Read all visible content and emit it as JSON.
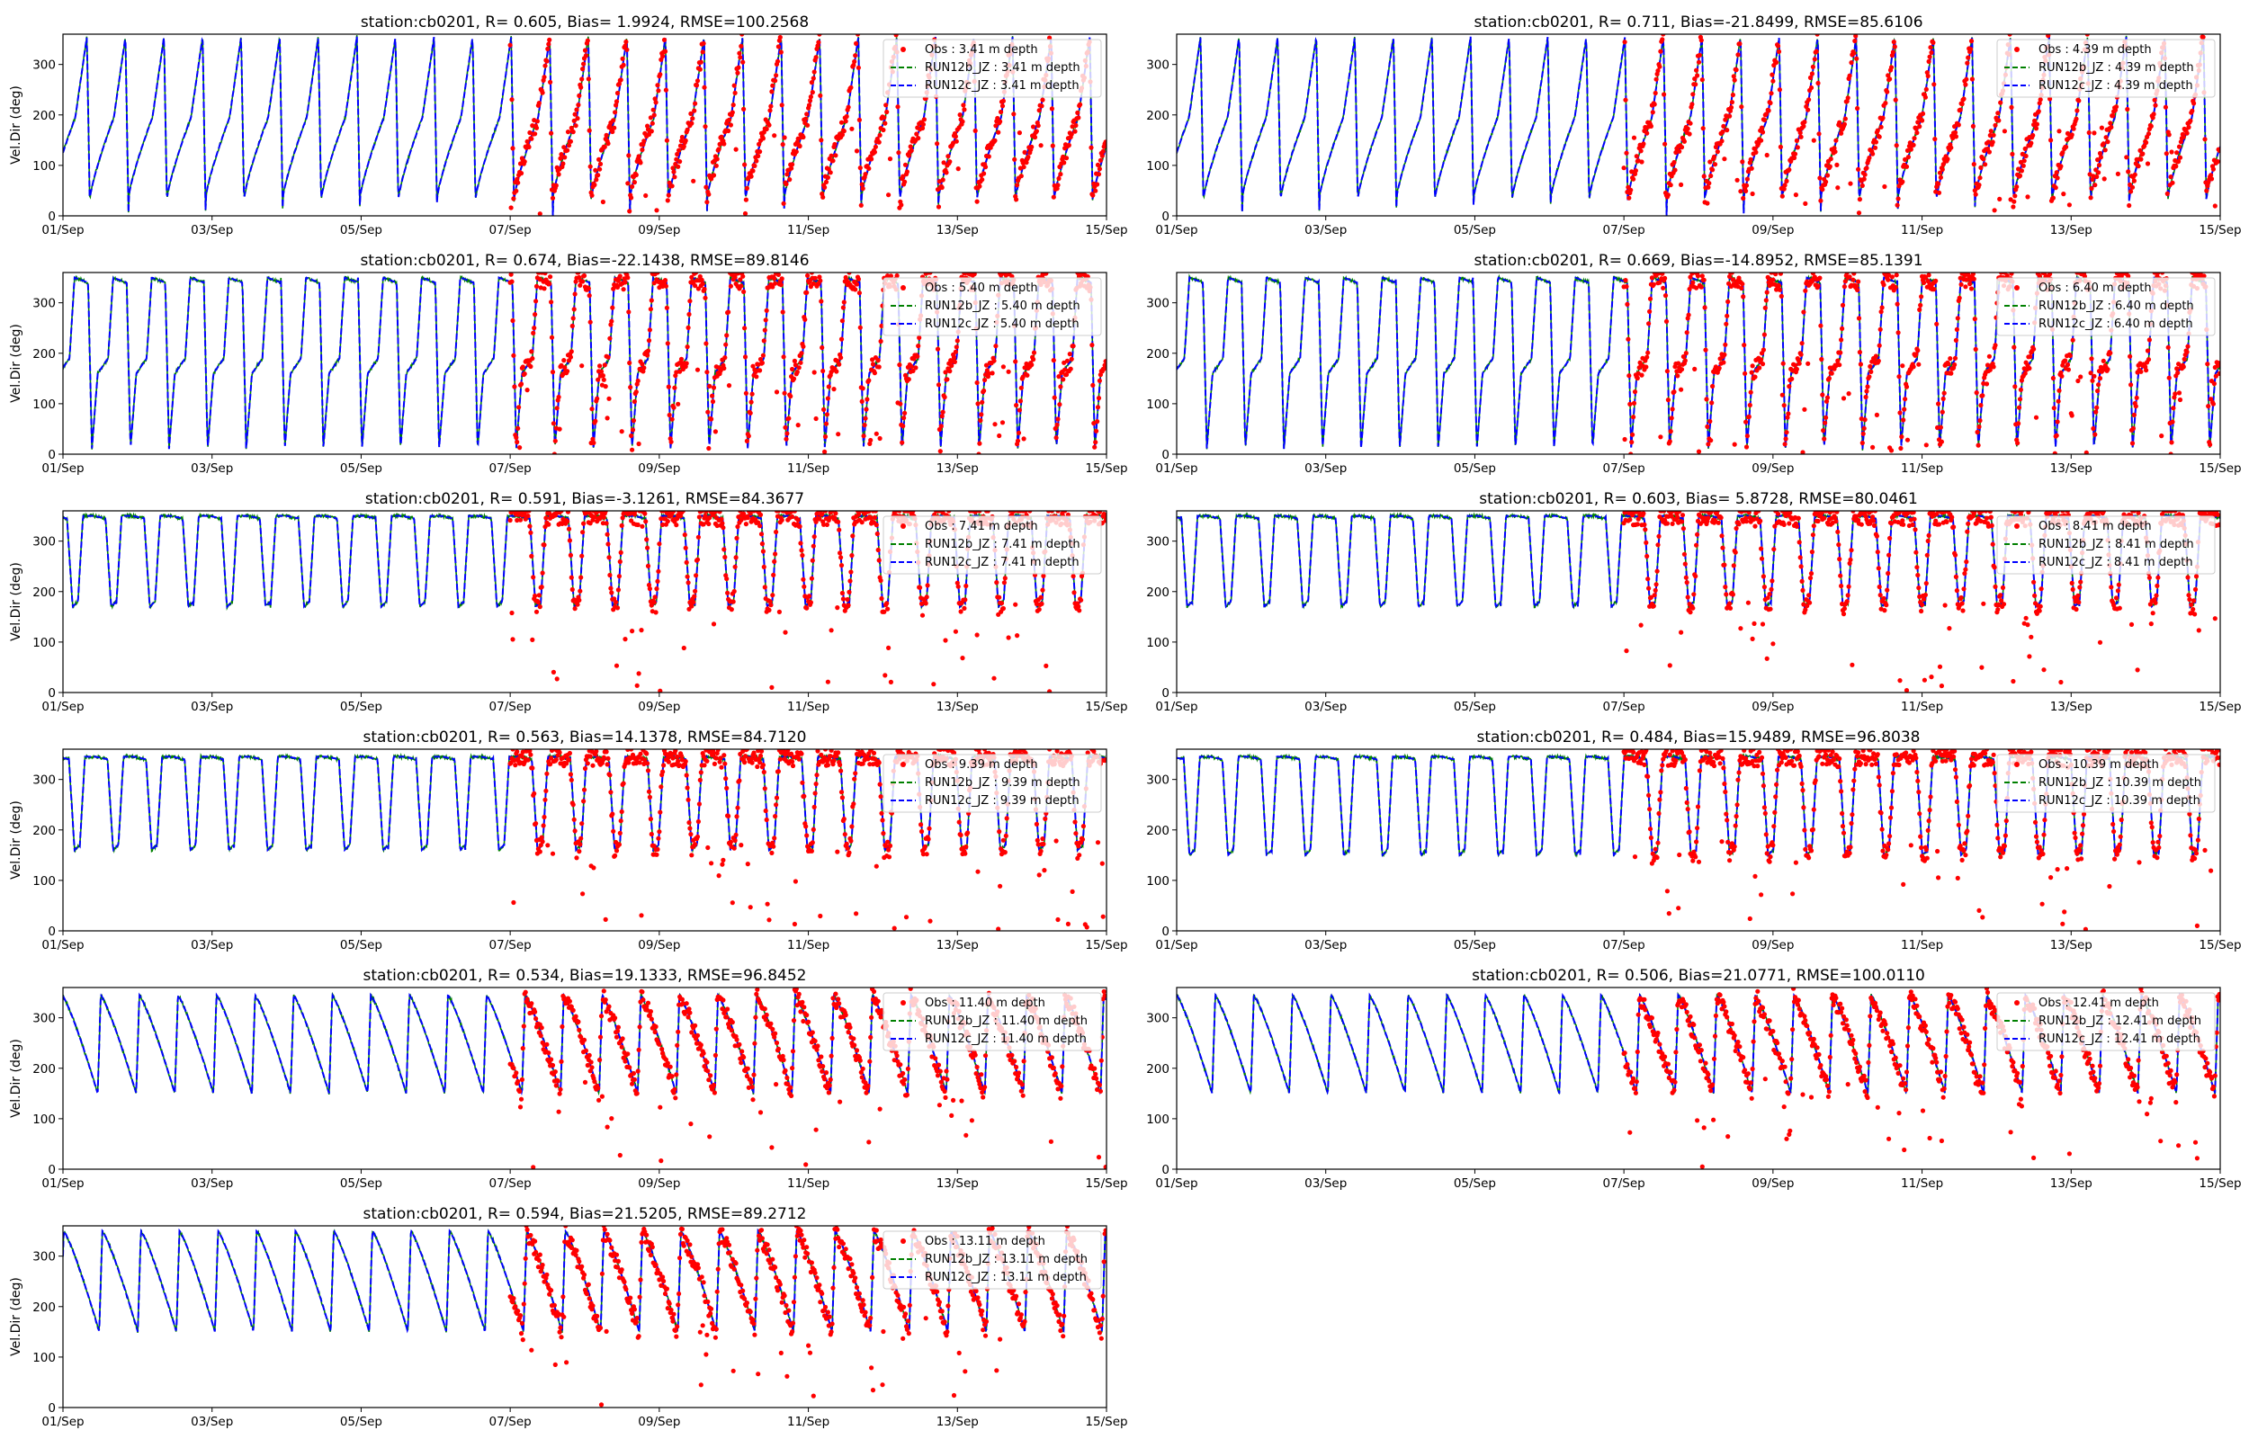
{
  "figure": {
    "colors": {
      "obs": "#ff0000",
      "run12b": "#008000",
      "run12c": "#0000ff",
      "axis": "#000000",
      "legend_bg": "#ffffff"
    }
  },
  "chart_data": [
    {
      "type": "line",
      "title": "station:cb0201, R= 0.605, Bias= 1.9924, RMSE=100.2568",
      "ylabel": "Vel.Dir (deg)",
      "xlabel": "",
      "xticks": [
        "01/Sep",
        "03/Sep",
        "05/Sep",
        "07/Sep",
        "09/Sep",
        "11/Sep",
        "13/Sep",
        "15/Sep"
      ],
      "yticks": [
        "0",
        "100",
        "200",
        "300"
      ],
      "xlim_days": [
        0,
        14
      ],
      "ylim": [
        0,
        360
      ],
      "legend_position": "upper right",
      "legend": [
        "Obs : 3.41 m depth",
        "RUN12b_JZ : 3.41 m depth",
        "RUN12c_JZ : 3.41 m depth"
      ],
      "model": {
        "period_days": 0.5175,
        "phase": 0.3,
        "min": 0,
        "max": 355,
        "shape": "sawtooth"
      },
      "obs": {
        "start_day": 6.0,
        "end_day": 14.0,
        "description": "observations follow model sawtooth, 0-360 deg"
      }
    },
    {
      "type": "line",
      "title": "station:cb0201, R= 0.711, Bias=-21.8499, RMSE=85.6106",
      "ylabel": "",
      "xlabel": "",
      "xticks": [
        "01/Sep",
        "03/Sep",
        "05/Sep",
        "07/Sep",
        "09/Sep",
        "11/Sep",
        "13/Sep",
        "15/Sep"
      ],
      "yticks": [
        "0",
        "100",
        "200",
        "300"
      ],
      "xlim_days": [
        0,
        14
      ],
      "ylim": [
        0,
        360
      ],
      "legend_position": "upper right",
      "legend": [
        "Obs : 4.39 m depth",
        "RUN12b_JZ : 4.39 m depth",
        "RUN12c_JZ : 4.39 m depth"
      ],
      "model": {
        "period_days": 0.5175,
        "phase": 0.3,
        "min": 0,
        "max": 355,
        "shape": "sawtooth"
      },
      "obs": {
        "start_day": 6.0,
        "end_day": 14.0
      }
    },
    {
      "type": "line",
      "title": "station:cb0201, R= 0.674, Bias=-22.1438, RMSE=89.8146",
      "ylabel": "Vel.Dir (deg)",
      "xlabel": "",
      "xticks": [
        "01/Sep",
        "03/Sep",
        "05/Sep",
        "07/Sep",
        "09/Sep",
        "11/Sep",
        "13/Sep",
        "15/Sep"
      ],
      "yticks": [
        "0",
        "100",
        "200",
        "300"
      ],
      "xlim_days": [
        0,
        14
      ],
      "ylim": [
        0,
        360
      ],
      "legend_position": "upper right",
      "legend": [
        "Obs : 5.40 m depth",
        "RUN12b_JZ : 5.40 m depth",
        "RUN12c_JZ : 5.40 m depth"
      ],
      "model": {
        "period_days": 0.5175,
        "phase": 0.25,
        "min": 10,
        "max": 350,
        "shape": "sawtooth-plateau"
      },
      "obs": {
        "start_day": 6.0,
        "end_day": 14.0
      }
    },
    {
      "type": "line",
      "title": "station:cb0201, R= 0.669, Bias=-14.8952, RMSE=85.1391",
      "ylabel": "",
      "xlabel": "",
      "xticks": [
        "01/Sep",
        "03/Sep",
        "05/Sep",
        "07/Sep",
        "09/Sep",
        "11/Sep",
        "13/Sep",
        "15/Sep"
      ],
      "yticks": [
        "0",
        "100",
        "200",
        "300"
      ],
      "xlim_days": [
        0,
        14
      ],
      "ylim": [
        0,
        360
      ],
      "legend_position": "upper right",
      "legend": [
        "Obs : 6.40 m depth",
        "RUN12b_JZ : 6.40 m depth",
        "RUN12c_JZ : 6.40 m depth"
      ],
      "model": {
        "period_days": 0.5175,
        "phase": 0.22,
        "min": 10,
        "max": 350,
        "shape": "sawtooth-plateau"
      },
      "obs": {
        "start_day": 6.0,
        "end_day": 14.0
      }
    },
    {
      "type": "line",
      "title": "station:cb0201, R= 0.591, Bias=-3.1261, RMSE=84.3677",
      "ylabel": "Vel.Dir (deg)",
      "xlabel": "",
      "xticks": [
        "01/Sep",
        "03/Sep",
        "05/Sep",
        "07/Sep",
        "09/Sep",
        "11/Sep",
        "13/Sep",
        "15/Sep"
      ],
      "yticks": [
        "0",
        "100",
        "200",
        "300"
      ],
      "xlim_days": [
        0,
        14
      ],
      "ylim": [
        0,
        360
      ],
      "legend_position": "upper right",
      "legend": [
        "Obs : 7.41 m depth",
        "RUN12b_JZ : 7.41 m depth",
        "RUN12c_JZ : 7.41 m depth"
      ],
      "model": {
        "period_days": 0.5175,
        "phase": 0.2,
        "min": 170,
        "max": 350,
        "shape": "plateau"
      },
      "obs": {
        "start_day": 6.0,
        "end_day": 14.0
      }
    },
    {
      "type": "line",
      "title": "station:cb0201, R= 0.603, Bias= 5.8728, RMSE=80.0461",
      "ylabel": "",
      "xlabel": "",
      "xticks": [
        "01/Sep",
        "03/Sep",
        "05/Sep",
        "07/Sep",
        "09/Sep",
        "11/Sep",
        "13/Sep",
        "15/Sep"
      ],
      "yticks": [
        "0",
        "100",
        "200",
        "300"
      ],
      "xlim_days": [
        0,
        14
      ],
      "ylim": [
        0,
        360
      ],
      "legend_position": "upper right",
      "legend": [
        "Obs : 8.41 m depth",
        "RUN12b_JZ : 8.41 m depth",
        "RUN12c_JZ : 8.41 m depth"
      ],
      "model": {
        "period_days": 0.5175,
        "phase": 0.18,
        "min": 170,
        "max": 350,
        "shape": "plateau"
      },
      "obs": {
        "start_day": 6.0,
        "end_day": 14.0
      }
    },
    {
      "type": "line",
      "title": "station:cb0201, R= 0.563, Bias=14.1378, RMSE=84.7120",
      "ylabel": "Vel.Dir (deg)",
      "xlabel": "",
      "xticks": [
        "01/Sep",
        "03/Sep",
        "05/Sep",
        "07/Sep",
        "09/Sep",
        "11/Sep",
        "13/Sep",
        "15/Sep"
      ],
      "yticks": [
        "0",
        "100",
        "200",
        "300"
      ],
      "xlim_days": [
        0,
        14
      ],
      "ylim": [
        0,
        360
      ],
      "legend_position": "upper right",
      "legend": [
        "Obs : 9.39 m depth",
        "RUN12b_JZ : 9.39 m depth",
        "RUN12c_JZ : 9.39 m depth"
      ],
      "model": {
        "period_days": 0.5175,
        "phase": 0.15,
        "min": 160,
        "max": 345,
        "shape": "plateau"
      },
      "obs": {
        "start_day": 6.0,
        "end_day": 14.0
      }
    },
    {
      "type": "line",
      "title": "station:cb0201, R= 0.484, Bias=15.9489, RMSE=96.8038",
      "ylabel": "",
      "xlabel": "",
      "xticks": [
        "01/Sep",
        "03/Sep",
        "05/Sep",
        "07/Sep",
        "09/Sep",
        "11/Sep",
        "13/Sep",
        "15/Sep"
      ],
      "yticks": [
        "0",
        "100",
        "200",
        "300"
      ],
      "xlim_days": [
        0,
        14
      ],
      "ylim": [
        0,
        360
      ],
      "legend_position": "upper right",
      "legend": [
        "Obs : 10.39 m depth",
        "RUN12b_JZ : 10.39 m depth",
        "RUN12c_JZ : 10.39 m depth"
      ],
      "model": {
        "period_days": 0.5175,
        "phase": 0.12,
        "min": 150,
        "max": 345,
        "shape": "plateau"
      },
      "obs": {
        "start_day": 6.0,
        "end_day": 14.0
      }
    },
    {
      "type": "line",
      "title": "station:cb0201, R= 0.534, Bias=19.1333, RMSE=96.8452",
      "ylabel": "Vel.Dir (deg)",
      "xlabel": "",
      "xticks": [
        "01/Sep",
        "03/Sep",
        "05/Sep",
        "07/Sep",
        "09/Sep",
        "11/Sep",
        "13/Sep",
        "15/Sep"
      ],
      "yticks": [
        "0",
        "100",
        "200",
        "300"
      ],
      "xlim_days": [
        0,
        14
      ],
      "ylim": [
        0,
        360
      ],
      "legend_position": "upper right",
      "legend": [
        "Obs : 11.40 m depth",
        "RUN12b_JZ : 11.40 m depth",
        "RUN12c_JZ : 11.40 m depth"
      ],
      "model": {
        "period_days": 0.5175,
        "phase": 0.1,
        "min": 150,
        "max": 345,
        "shape": "decay"
      },
      "obs": {
        "start_day": 6.0,
        "end_day": 14.0
      }
    },
    {
      "type": "line",
      "title": "station:cb0201, R= 0.506, Bias=21.0771, RMSE=100.0110",
      "ylabel": "",
      "xlabel": "",
      "xticks": [
        "01/Sep",
        "03/Sep",
        "05/Sep",
        "07/Sep",
        "09/Sep",
        "11/Sep",
        "13/Sep",
        "15/Sep"
      ],
      "yticks": [
        "0",
        "100",
        "200",
        "300"
      ],
      "xlim_days": [
        0,
        14
      ],
      "ylim": [
        0,
        360
      ],
      "legend_position": "upper right",
      "legend": [
        "Obs : 12.41 m depth",
        "RUN12b_JZ : 12.41 m depth",
        "RUN12c_JZ : 12.41 m depth"
      ],
      "model": {
        "period_days": 0.5175,
        "phase": 0.08,
        "min": 150,
        "max": 345,
        "shape": "decay"
      },
      "obs": {
        "start_day": 6.0,
        "end_day": 14.0
      }
    },
    {
      "type": "line",
      "title": "station:cb0201, R= 0.594, Bias=21.5205, RMSE=89.2712",
      "ylabel": "Vel.Dir (deg)",
      "xlabel": "",
      "xticks": [
        "01/Sep",
        "03/Sep",
        "05/Sep",
        "07/Sep",
        "09/Sep",
        "11/Sep",
        "13/Sep",
        "15/Sep"
      ],
      "yticks": [
        "0",
        "100",
        "200",
        "300"
      ],
      "xlim_days": [
        0,
        14
      ],
      "ylim": [
        0,
        360
      ],
      "legend_position": "upper right",
      "legend": [
        "Obs : 13.11 m depth",
        "RUN12b_JZ : 13.11 m depth",
        "RUN12c_JZ : 13.11 m depth"
      ],
      "model": {
        "period_days": 0.5175,
        "phase": 0.06,
        "min": 150,
        "max": 350,
        "shape": "decay"
      },
      "obs": {
        "start_day": 6.0,
        "end_day": 14.0
      }
    }
  ]
}
